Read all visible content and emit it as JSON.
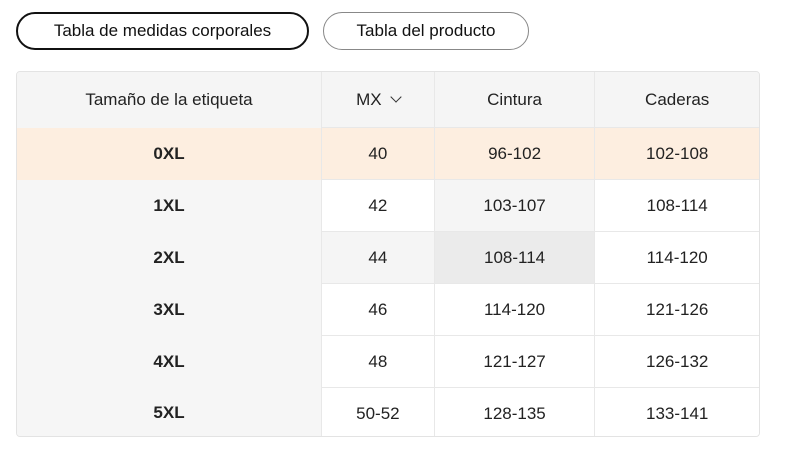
{
  "tabs": [
    {
      "label": "Tabla de medidas corporales",
      "active": true
    },
    {
      "label": "Tabla del producto",
      "active": false
    }
  ],
  "table": {
    "headers": [
      "Tamaño de la etiqueta",
      "MX",
      "Cintura",
      "Caderas"
    ],
    "unit_selector_icon": "chevron-down-icon",
    "highlight_color": "#fdeee0",
    "rows": [
      [
        "0XL",
        "40",
        "96-102",
        "102-108"
      ],
      [
        "1XL",
        "42",
        "103-107",
        "108-114"
      ],
      [
        "2XL",
        "44",
        "108-114",
        "114-120"
      ],
      [
        "3XL",
        "46",
        "114-120",
        "121-126"
      ],
      [
        "4XL",
        "48",
        "121-127",
        "126-132"
      ],
      [
        "5XL",
        "50-52",
        "128-135",
        "133-141"
      ]
    ]
  }
}
